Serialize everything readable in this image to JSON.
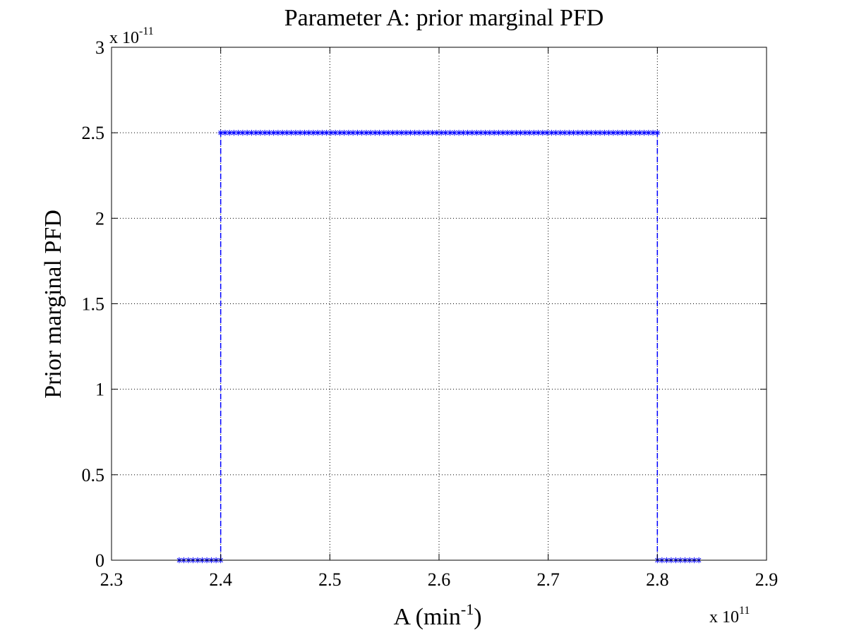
{
  "chart_data": {
    "type": "line",
    "title": "Parameter A: prior marginal PFD",
    "xlabel": {
      "base": "A (min",
      "sup": "-1",
      "close": ")"
    },
    "ylabel": "Prior marginal PFD",
    "x_multiplier": {
      "base": "x 10",
      "exp": "11"
    },
    "y_multiplier": {
      "base": "x 10",
      "exp": "-11"
    },
    "xlim": [
      2.3,
      2.9
    ],
    "ylim": [
      0,
      3
    ],
    "xticks": [
      2.3,
      2.4,
      2.5,
      2.6,
      2.7,
      2.8,
      2.9
    ],
    "xtick_labels": [
      "2.3",
      "2.4",
      "2.5",
      "2.6",
      "2.7",
      "2.8",
      "2.9"
    ],
    "yticks": [
      0,
      0.5,
      1,
      1.5,
      2,
      2.5,
      3
    ],
    "ytick_labels": [
      "0",
      "0.5",
      "1",
      "1.5",
      "2",
      "2.5",
      "3"
    ],
    "grid": true,
    "color": "#0000ff",
    "series": [
      {
        "line_style": "dashed",
        "marker": "asterisk",
        "segments": [
          {
            "x": [
              2.362,
              2.4
            ],
            "y": [
              0,
              0
            ],
            "n_points": 10
          },
          {
            "x": [
              2.4,
              2.8
            ],
            "y": [
              2.5,
              2.5
            ],
            "n_points": 100
          },
          {
            "x": [
              2.8,
              2.838
            ],
            "y": [
              0,
              0
            ],
            "n_points": 10
          }
        ],
        "step_edges": [
          {
            "x": 2.4,
            "y": [
              0,
              2.5
            ]
          },
          {
            "x": 2.8,
            "y": [
              0,
              2.5
            ]
          }
        ]
      }
    ]
  }
}
